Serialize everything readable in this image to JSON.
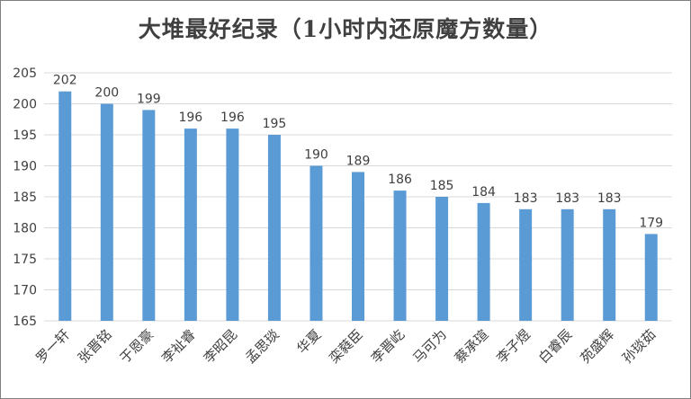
{
  "chart_data": {
    "type": "bar",
    "title": "大堆最好纪录（1小时内还原魔方数量）",
    "xlabel": "",
    "ylabel": "",
    "categories": [
      "罗一轩",
      "张晋铭",
      "于恩豪",
      "李祉睿",
      "李昭昆",
      "孟思琰",
      "华夏",
      "栾蕤臣",
      "李晋屹",
      "马可为",
      "蔡承瑄",
      "李子煜",
      "白睿辰",
      "苑盛辉",
      "孙琰茹"
    ],
    "values": [
      202,
      200,
      199,
      196,
      196,
      195,
      190,
      189,
      186,
      185,
      184,
      183,
      183,
      183,
      179
    ],
    "ylim": [
      165,
      205
    ],
    "yticks": [
      165,
      170,
      175,
      180,
      185,
      190,
      195,
      200,
      205
    ],
    "grid": true,
    "legend": "none",
    "bar_color": "#5b9bd5",
    "grid_color": "#d9d9d9",
    "text_color": "#404040"
  }
}
